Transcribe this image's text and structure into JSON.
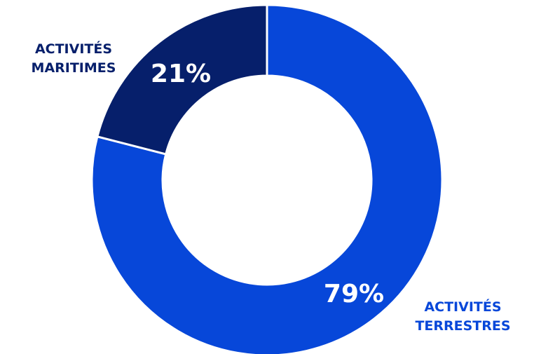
{
  "colors": {
    "terrestre": "#0747d9",
    "maritime": "#061f6b",
    "separator": "#ffffff"
  },
  "chart_data": {
    "type": "pie",
    "donut": true,
    "slices": [
      {
        "label_line1": "ACTIVITÉS",
        "label_line2": "TERRESTRES",
        "value": 79,
        "value_label": "79%"
      },
      {
        "label_line1": "ACTIVITÉS",
        "label_line2": "MARITIMES",
        "value": 21,
        "value_label": "21%"
      }
    ]
  }
}
